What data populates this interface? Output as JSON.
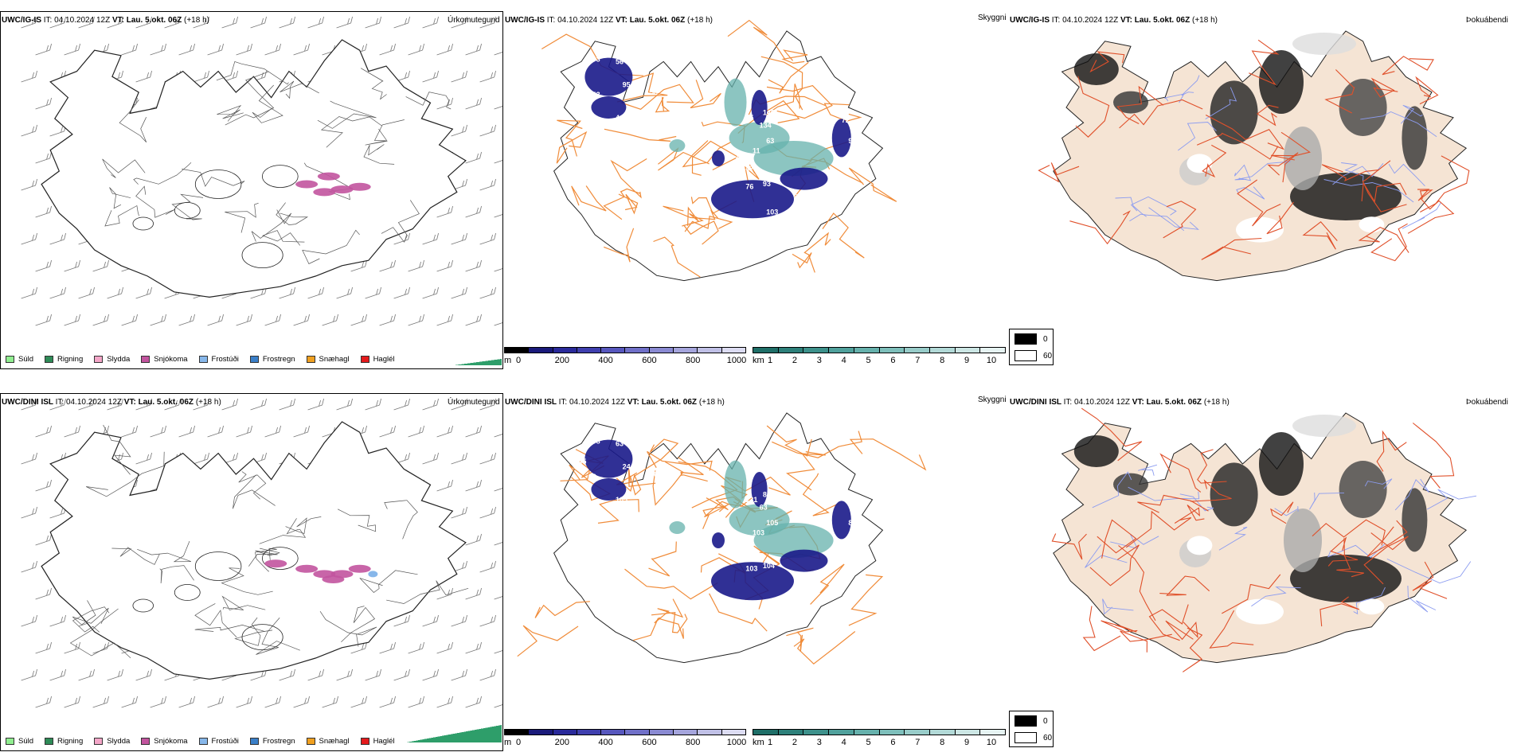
{
  "rows": [
    {
      "model": "UWC/IG-IS",
      "it_label": "IT:",
      "it_value": "04.10.2024 12Z",
      "vt_label": "VT:",
      "vt_value": "Lau. 5.okt. 06Z",
      "lead": "(+18 h)"
    },
    {
      "model": "UWC/DINI ISL",
      "it_label": "IT:",
      "it_value": "04.10.2024 12Z",
      "vt_label": "VT:",
      "vt_value": "Lau. 5.okt. 06Z",
      "lead": "(+18 h)"
    }
  ],
  "titles": {
    "precip_type": "Úrkomutegund",
    "visibility": "Skyggni",
    "fog": "Þokuábendi"
  },
  "precip_legend": [
    {
      "label": "Súld",
      "color": "#90ee90"
    },
    {
      "label": "Rigning",
      "color": "#2e8b57"
    },
    {
      "label": "Slydda",
      "color": "#f4a6c8"
    },
    {
      "label": "Snjókoma",
      "color": "#c2549e"
    },
    {
      "label": "Frostúði",
      "color": "#87b7ea"
    },
    {
      "label": "Frostregn",
      "color": "#3a7fc8"
    },
    {
      "label": "Snæhagl",
      "color": "#f0a020"
    },
    {
      "label": "Haglél",
      "color": "#e41a1c"
    }
  ],
  "ceiling_bar": {
    "unit": "m",
    "ticks": [
      "0",
      "200",
      "400",
      "600",
      "800",
      "1000"
    ],
    "colors": [
      "#000000",
      "#1a1a7a",
      "#2a2a9a",
      "#3f3fae",
      "#5757bd",
      "#7070c8",
      "#8a8ad2",
      "#a5a5dc",
      "#c0c0e6",
      "#dcdcf2"
    ]
  },
  "visibility_bar": {
    "unit": "km",
    "ticks": [
      "1",
      "2",
      "3",
      "4",
      "5",
      "6",
      "7",
      "8",
      "9",
      "10"
    ],
    "colors": [
      "#1f6f68",
      "#2d807a",
      "#3d918b",
      "#50a19c",
      "#66b1ac",
      "#7ebfbb",
      "#98ccc9",
      "#b2d9d7",
      "#cce6e4",
      "#e6f3f2"
    ]
  },
  "fog_key": [
    {
      "value": "0",
      "color": "#000000"
    },
    {
      "value": "60",
      "color": "#ffffff"
    }
  ],
  "labels_top": [
    "103",
    "56",
    "95",
    "24",
    "143",
    "58",
    "4",
    "95",
    "146",
    "134",
    "10",
    "63",
    "11",
    "94",
    "107",
    "47",
    "76",
    "93",
    "97",
    "70",
    "103",
    "72"
  ],
  "labels_bottom": [
    "108",
    "63",
    "24",
    "245",
    "63",
    "86",
    "105",
    "131",
    "84",
    "63",
    "40",
    "105",
    "103",
    "84",
    "58",
    "98",
    "103",
    "104",
    "104",
    "8"
  ]
}
